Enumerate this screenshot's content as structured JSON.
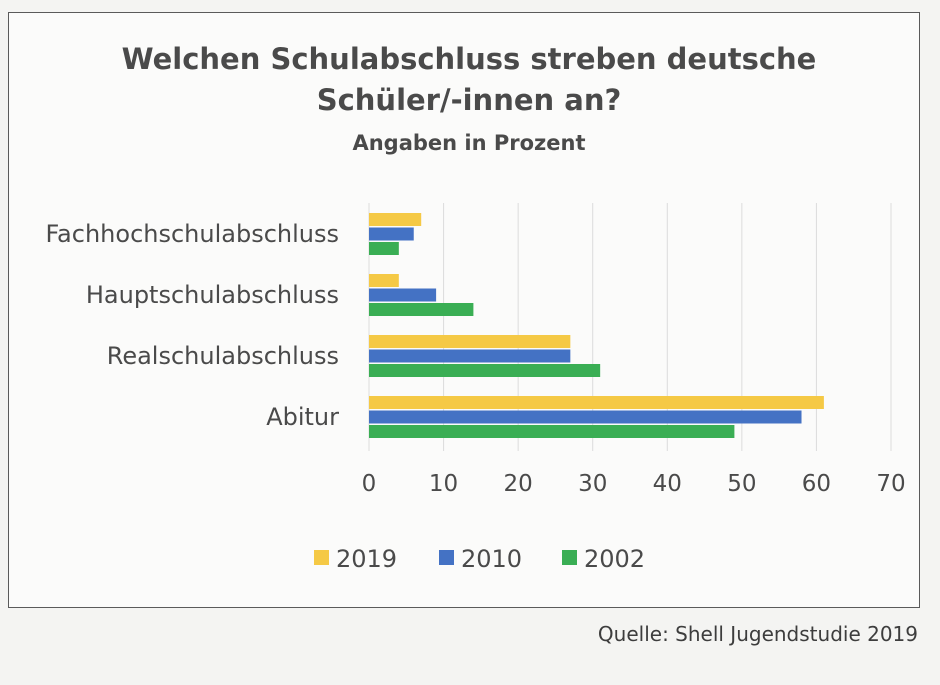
{
  "chart_data": {
    "type": "bar",
    "orientation": "horizontal",
    "title": "Welchen Schulabschluss streben deutsche Schüler/-innen an?",
    "title_lines": [
      "Welchen Schulabschluss streben deutsche",
      "Schüler/-innen an?"
    ],
    "subtitle": "Angaben in Prozent",
    "categories": [
      "Fachhochschulabschluss",
      "Hauptschulabschluss",
      "Realschulabschluss",
      "Abitur"
    ],
    "series": [
      {
        "name": "2019",
        "color": "#f5c945",
        "values": [
          7,
          4,
          27,
          61
        ]
      },
      {
        "name": "2010",
        "color": "#4472c4",
        "values": [
          6,
          9,
          27,
          58
        ]
      },
      {
        "name": "2002",
        "color": "#3aae54",
        "values": [
          4,
          14,
          31,
          49
        ]
      }
    ],
    "xlim": [
      0,
      70
    ],
    "xticks": [
      "0",
      "10",
      "20",
      "30",
      "40",
      "50",
      "60",
      "70"
    ],
    "grid": true,
    "legend": "bottom"
  },
  "source": "Quelle: Shell Jugendstudie 2019"
}
